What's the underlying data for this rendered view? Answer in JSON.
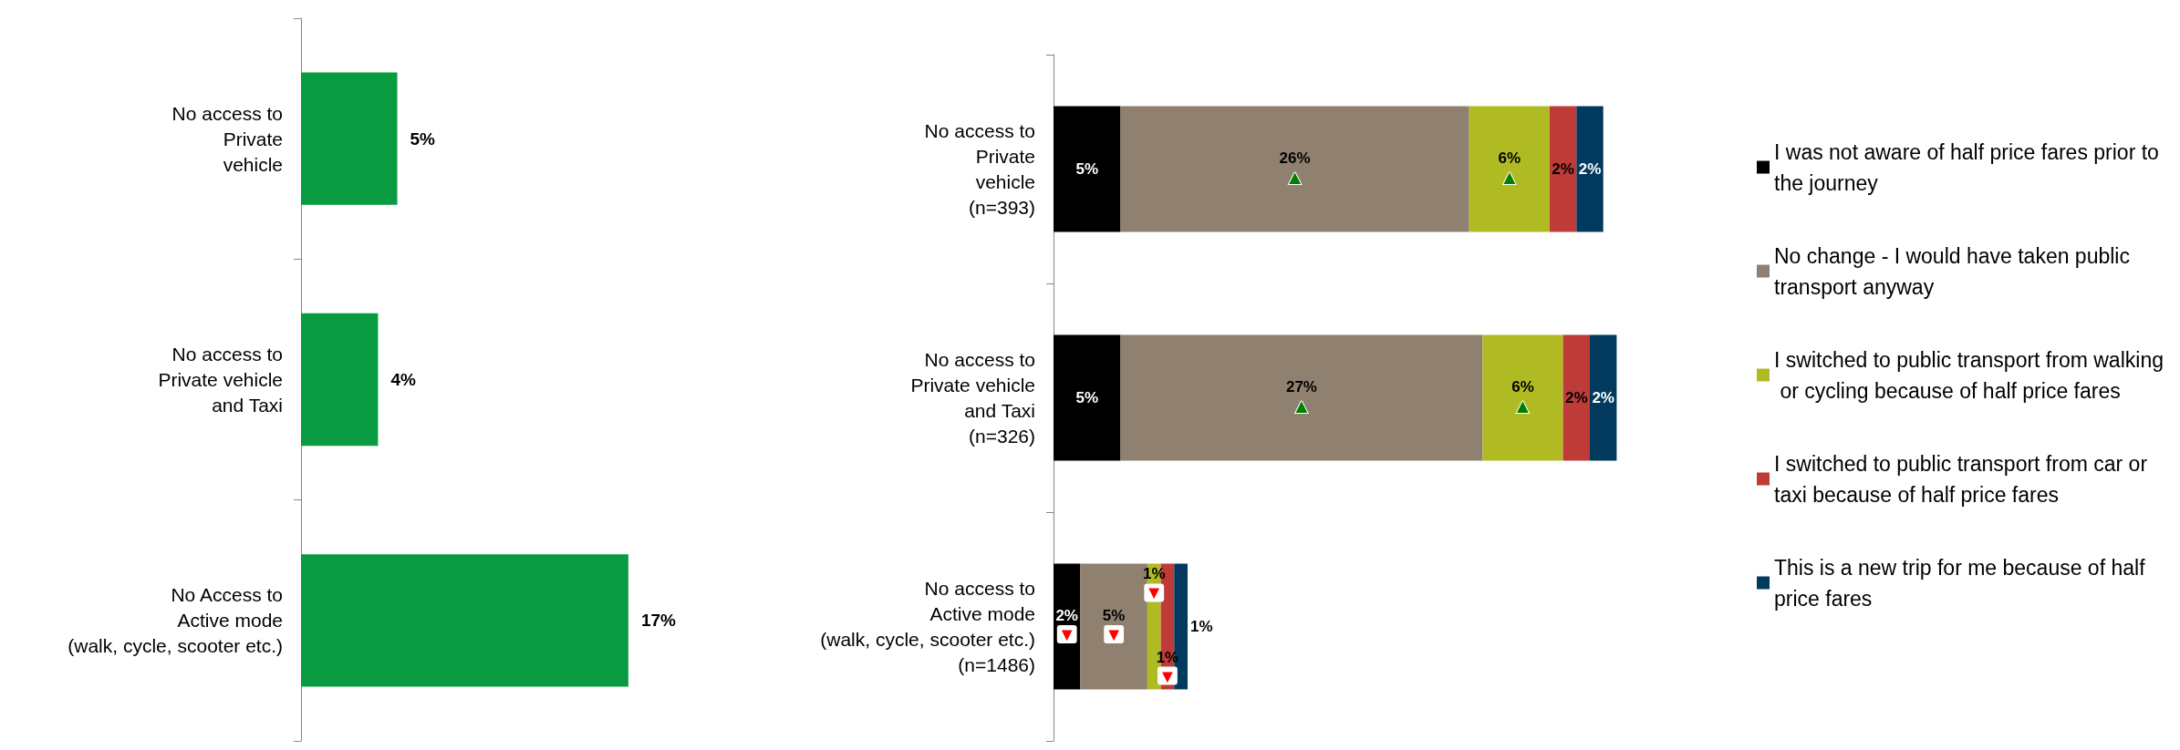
{
  "chart_data": [
    {
      "type": "bar",
      "orientation": "horizontal",
      "categories": [
        "No access to\nPrivate\nvehicle",
        "No access to\nPrivate vehicle\nand Taxi",
        "No Access to\nActive mode\n(walk, cycle, scooter etc.)"
      ],
      "values": [
        5,
        4,
        17
      ],
      "value_labels": [
        "5%",
        "4%",
        "17%"
      ],
      "color": "#089b41",
      "legend": false
    },
    {
      "type": "bar",
      "orientation": "horizontal",
      "stacked": true,
      "categories": [
        "No access to\nPrivate\nvehicle\n(n=393)",
        "No access to\nPrivate vehicle\nand Taxi\n(n=326)",
        "No access to\nActive mode\n(walk, cycle, scooter etc.)\n(n=1486)"
      ],
      "series": [
        {
          "name": "I was not aware of half price fares prior to the journey",
          "color": "#000000",
          "values": [
            5,
            5,
            2
          ],
          "value_labels": [
            "5%",
            "5%",
            "2%\n▼"
          ]
        },
        {
          "name": "No change - I would have taken public transport anyway",
          "color": "#908070",
          "values": [
            26,
            27,
            5
          ],
          "value_labels": [
            "26%\n▲",
            "27%\n▲",
            "5%\n▼"
          ]
        },
        {
          "name": "I switched to public transport from walking or cycling because of half price fares",
          "color": "#b0bb23",
          "values": [
            6,
            6,
            1
          ],
          "value_labels": [
            "6%\n▲",
            "6%\n▲",
            "1%\n▼"
          ]
        },
        {
          "name": "I switched to public transport from car or taxi because of half price fares",
          "color": "#be3b37",
          "values": [
            2,
            2,
            1
          ],
          "value_labels": [
            "2%",
            "2%",
            "1%\n▼"
          ]
        },
        {
          "name": "This is a new trip for me because of half price fares",
          "color": "#023a5e",
          "values": [
            2,
            2,
            1
          ],
          "value_labels": [
            "2%",
            "2%",
            "1%"
          ]
        }
      ],
      "legend": "right"
    }
  ]
}
